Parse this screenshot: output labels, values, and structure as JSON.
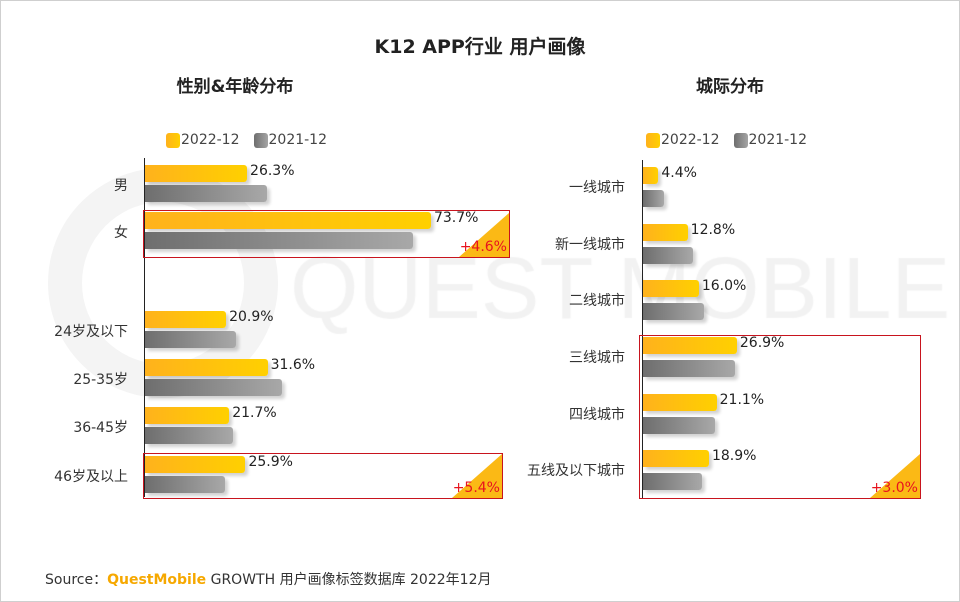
{
  "watermark": "QUEST MOBILE",
  "title": "K12 APP行业 用户画像",
  "source": {
    "prefix": "Source：",
    "brand": "QuestMobile",
    "text": "GROWTH 用户画像标签数据库 2022年12月"
  },
  "colors": {
    "series_2022": "#ffc000",
    "series_2021": "#8c8c8c",
    "highlight": "#c8141e",
    "delta": "#e8141e"
  },
  "chart_data": [
    {
      "type": "bar",
      "orientation": "horizontal",
      "title": "性别&年龄分布",
      "legend": [
        "2022-12",
        "2021-12"
      ],
      "legend_position": "top",
      "categories": [
        "男",
        "女",
        "24岁及以下",
        "25-35岁",
        "36-45岁",
        "46岁及以上"
      ],
      "series": [
        {
          "name": "2022-12",
          "values": [
            26.3,
            73.7,
            20.9,
            31.6,
            21.7,
            25.9
          ],
          "labels": [
            "26.3%",
            "73.7%",
            "20.9%",
            "31.6%",
            "21.7%",
            "25.9%"
          ]
        },
        {
          "name": "2021-12",
          "values": [
            31.4,
            69.1,
            23.5,
            35.3,
            22.7,
            20.5
          ]
        }
      ],
      "highlights": [
        {
          "category": "女",
          "delta": "+4.6%"
        },
        {
          "category": "46岁及以上",
          "delta": "+5.4%"
        }
      ],
      "grid": false
    },
    {
      "type": "bar",
      "orientation": "horizontal",
      "title": "城际分布",
      "legend": [
        "2022-12",
        "2021-12"
      ],
      "legend_position": "top",
      "categories": [
        "一线城市",
        "新一线城市",
        "二线城市",
        "三线城市",
        "四线城市",
        "五线及以下城市"
      ],
      "series": [
        {
          "name": "2022-12",
          "values": [
            4.4,
            12.8,
            16.0,
            26.9,
            21.1,
            18.9
          ],
          "labels": [
            "4.4%",
            "12.8%",
            "16.0%",
            "26.9%",
            "21.1%",
            "18.9%"
          ]
        },
        {
          "name": "2021-12",
          "values": [
            6.0,
            14.3,
            17.5,
            26.3,
            20.6,
            17.0
          ]
        }
      ],
      "highlights": [
        {
          "categories": [
            "三线城市",
            "四线城市",
            "五线及以下城市"
          ],
          "delta": "+3.0%"
        }
      ],
      "grid": false
    }
  ]
}
